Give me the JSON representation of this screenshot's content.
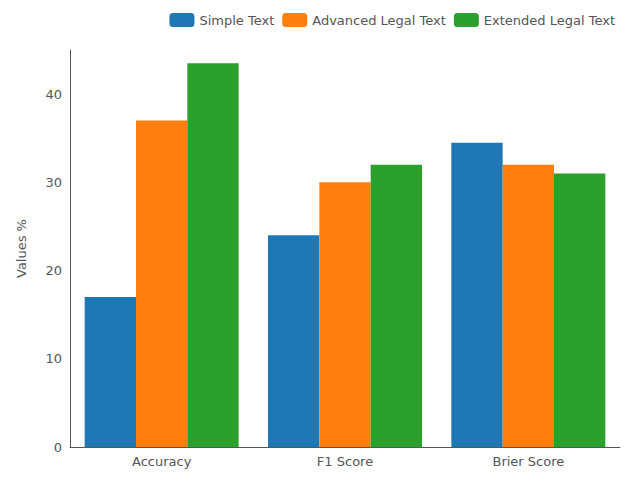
{
  "chart_data": {
    "type": "bar",
    "categories": [
      "Accuracy",
      "F1 Score",
      "Brier Score"
    ],
    "series": [
      {
        "name": "Simple Text",
        "color": "#1f77b4",
        "values": [
          17,
          24,
          34.5
        ]
      },
      {
        "name": "Advanced Legal Text",
        "color": "#ff7f0e",
        "values": [
          37,
          30,
          32
        ]
      },
      {
        "name": "Extended Legal Text",
        "color": "#2ca02c",
        "values": [
          43.5,
          32,
          31
        ]
      }
    ],
    "ylabel": "Values %",
    "ylim": [
      0,
      45
    ],
    "yticks": [
      0,
      10,
      20,
      30,
      40
    ],
    "grid": false,
    "legend": "upper right"
  }
}
